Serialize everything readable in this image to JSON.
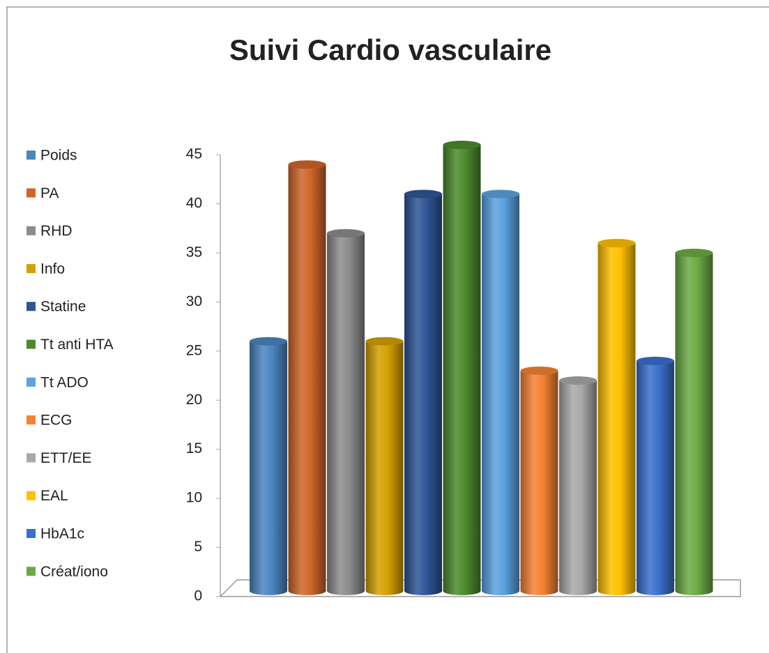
{
  "chart_data": {
    "type": "bar",
    "title": "Suivi Cardio vasculaire",
    "series": [
      {
        "name": "Poids",
        "color": "#4a86c0",
        "values": [
          26
        ]
      },
      {
        "name": "PA",
        "color": "#d0652a",
        "values": [
          44
        ]
      },
      {
        "name": "RHD",
        "color": "#8c8c8c",
        "values": [
          37
        ]
      },
      {
        "name": "Info",
        "color": "#d4a000",
        "values": [
          26
        ]
      },
      {
        "name": "Statine",
        "color": "#2f5597",
        "values": [
          41
        ]
      },
      {
        "name": "Tt anti HTA",
        "color": "#4c8a2e",
        "values": [
          46
        ]
      },
      {
        "name": "Tt ADO",
        "color": "#5aa2e0",
        "values": [
          41
        ]
      },
      {
        "name": "ECG",
        "color": "#f58233",
        "values": [
          23
        ]
      },
      {
        "name": "ETT/EE",
        "color": "#a8a8a8",
        "values": [
          22
        ]
      },
      {
        "name": "EAL",
        "color": "#ffc000",
        "values": [
          36
        ]
      },
      {
        "name": "HbA1c",
        "color": "#3b6fce",
        "values": [
          24
        ]
      },
      {
        "name": "Créat/iono",
        "color": "#6aaa43",
        "values": [
          35
        ]
      }
    ],
    "ylim": [
      0,
      45
    ],
    "yticks": [
      0,
      5,
      10,
      15,
      20,
      25,
      30,
      35,
      40,
      45
    ],
    "legend": "left"
  }
}
